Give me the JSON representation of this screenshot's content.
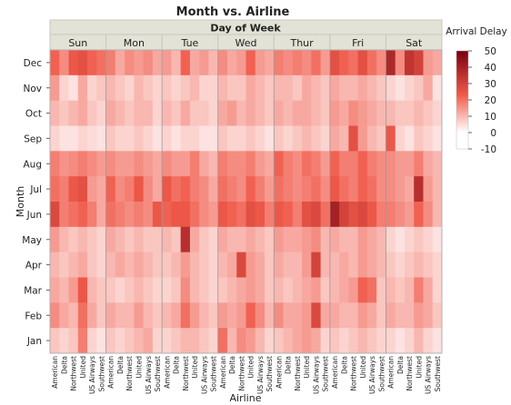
{
  "chart_data": {
    "type": "heatmap",
    "title": "Month vs. Airline",
    "facet_header": "Day of Week",
    "xlabel": "Airline",
    "ylabel": "Month",
    "legend_title": "Arrival Delay",
    "legend_ticks": [
      "50",
      "40",
      "30",
      "20",
      "10",
      "0",
      "-10"
    ],
    "color_range": [
      -10,
      50
    ],
    "colors": {
      "low": "#ffffff",
      "mid": "#f05a4a",
      "high": "#7a0010",
      "header_bg": "#e2e2d6"
    },
    "days": [
      "Sun",
      "Mon",
      "Tue",
      "Wed",
      "Thur",
      "Fri",
      "Sat"
    ],
    "airlines": [
      "American",
      "Delta",
      "Northwest",
      "United",
      "US Airways",
      "Southwest"
    ],
    "months": [
      "Dec",
      "Nov",
      "Oct",
      "Sep",
      "Aug",
      "Jul",
      "Jun",
      "May",
      "Apr",
      "Mar",
      "Feb",
      "Jan"
    ],
    "values": {
      "Sun": [
        [
          22,
          16,
          24,
          26,
          22,
          20
        ],
        [
          14,
          6,
          4,
          12,
          6,
          8
        ],
        [
          10,
          8,
          10,
          12,
          8,
          6
        ],
        [
          6,
          4,
          4,
          6,
          5,
          4
        ],
        [
          18,
          15,
          16,
          18,
          16,
          14
        ],
        [
          20,
          18,
          24,
          26,
          14,
          12
        ],
        [
          28,
          18,
          20,
          22,
          18,
          12
        ],
        [
          14,
          10,
          8,
          10,
          8,
          6
        ],
        [
          10,
          8,
          10,
          12,
          8,
          6
        ],
        [
          12,
          10,
          14,
          24,
          10,
          8
        ],
        [
          16,
          12,
          10,
          20,
          12,
          8
        ],
        [
          8,
          6,
          8,
          18,
          6,
          4
        ]
      ],
      "Mon": [
        [
          18,
          12,
          16,
          14,
          16,
          12
        ],
        [
          10,
          8,
          6,
          10,
          8,
          6
        ],
        [
          12,
          10,
          8,
          10,
          10,
          6
        ],
        [
          8,
          6,
          6,
          8,
          6,
          4
        ],
        [
          16,
          14,
          14,
          16,
          14,
          12
        ],
        [
          22,
          16,
          18,
          24,
          16,
          12
        ],
        [
          20,
          18,
          16,
          18,
          16,
          24
        ],
        [
          12,
          10,
          8,
          10,
          8,
          8
        ],
        [
          10,
          12,
          10,
          12,
          10,
          8
        ],
        [
          8,
          6,
          8,
          10,
          8,
          6
        ],
        [
          12,
          10,
          10,
          14,
          10,
          8
        ],
        [
          8,
          6,
          8,
          10,
          12,
          6
        ]
      ],
      "Tue": [
        [
          14,
          10,
          22,
          12,
          14,
          10
        ],
        [
          8,
          6,
          8,
          10,
          6,
          6
        ],
        [
          10,
          8,
          12,
          8,
          8,
          6
        ],
        [
          6,
          4,
          6,
          6,
          4,
          4
        ],
        [
          16,
          14,
          14,
          18,
          12,
          10
        ],
        [
          24,
          20,
          22,
          18,
          16,
          12
        ],
        [
          22,
          24,
          24,
          20,
          16,
          14
        ],
        [
          10,
          8,
          36,
          12,
          8,
          6
        ],
        [
          8,
          10,
          14,
          10,
          8,
          6
        ],
        [
          6,
          8,
          16,
          10,
          8,
          6
        ],
        [
          10,
          12,
          20,
          14,
          10,
          8
        ],
        [
          6,
          8,
          10,
          10,
          8,
          6
        ]
      ],
      "Wed": [
        [
          16,
          12,
          14,
          22,
          14,
          12
        ],
        [
          10,
          8,
          8,
          12,
          10,
          8
        ],
        [
          12,
          14,
          10,
          12,
          10,
          8
        ],
        [
          8,
          6,
          6,
          8,
          6,
          4
        ],
        [
          18,
          16,
          16,
          18,
          14,
          12
        ],
        [
          20,
          18,
          16,
          22,
          18,
          14
        ],
        [
          24,
          22,
          20,
          26,
          24,
          18
        ],
        [
          12,
          10,
          10,
          12,
          10,
          8
        ],
        [
          10,
          12,
          28,
          14,
          12,
          8
        ],
        [
          8,
          10,
          12,
          14,
          12,
          8
        ],
        [
          14,
          12,
          14,
          22,
          16,
          10
        ],
        [
          20,
          10,
          16,
          14,
          10,
          6
        ]
      ],
      "Thur": [
        [
          18,
          16,
          18,
          16,
          20,
          14
        ],
        [
          10,
          10,
          8,
          12,
          10,
          8
        ],
        [
          12,
          10,
          12,
          12,
          10,
          8
        ],
        [
          8,
          6,
          8,
          10,
          8,
          6
        ],
        [
          22,
          18,
          16,
          20,
          18,
          14
        ],
        [
          20,
          18,
          16,
          18,
          20,
          16
        ],
        [
          24,
          22,
          18,
          26,
          28,
          20
        ],
        [
          14,
          12,
          12,
          14,
          16,
          10
        ],
        [
          12,
          10,
          10,
          14,
          30,
          10
        ],
        [
          10,
          8,
          10,
          12,
          14,
          8
        ],
        [
          16,
          12,
          12,
          14,
          28,
          12
        ],
        [
          8,
          10,
          12,
          14,
          12,
          6
        ]
      ],
      "Fri": [
        [
          26,
          22,
          20,
          26,
          20,
          16
        ],
        [
          12,
          10,
          10,
          12,
          10,
          8
        ],
        [
          14,
          12,
          16,
          14,
          12,
          10
        ],
        [
          12,
          10,
          26,
          14,
          10,
          8
        ],
        [
          22,
          18,
          18,
          22,
          18,
          16
        ],
        [
          24,
          20,
          18,
          22,
          20,
          16
        ],
        [
          40,
          30,
          26,
          28,
          24,
          18
        ],
        [
          12,
          10,
          10,
          14,
          12,
          10
        ],
        [
          10,
          12,
          10,
          14,
          12,
          10
        ],
        [
          10,
          12,
          14,
          22,
          20,
          8
        ],
        [
          12,
          10,
          10,
          14,
          12,
          8
        ],
        [
          8,
          6,
          8,
          10,
          8,
          6
        ]
      ],
      "Sat": [
        [
          38,
          16,
          34,
          30,
          14,
          12
        ],
        [
          6,
          4,
          6,
          8,
          12,
          4
        ],
        [
          10,
          8,
          8,
          10,
          8,
          6
        ],
        [
          24,
          6,
          4,
          8,
          6,
          4
        ],
        [
          16,
          14,
          14,
          18,
          12,
          10
        ],
        [
          16,
          14,
          12,
          36,
          14,
          10
        ],
        [
          18,
          16,
          14,
          22,
          16,
          10
        ],
        [
          6,
          4,
          6,
          8,
          6,
          4
        ],
        [
          8,
          6,
          8,
          10,
          8,
          6
        ],
        [
          10,
          8,
          10,
          18,
          12,
          6
        ],
        [
          12,
          10,
          10,
          14,
          12,
          8
        ],
        [
          6,
          4,
          6,
          10,
          6,
          4
        ]
      ]
    }
  }
}
